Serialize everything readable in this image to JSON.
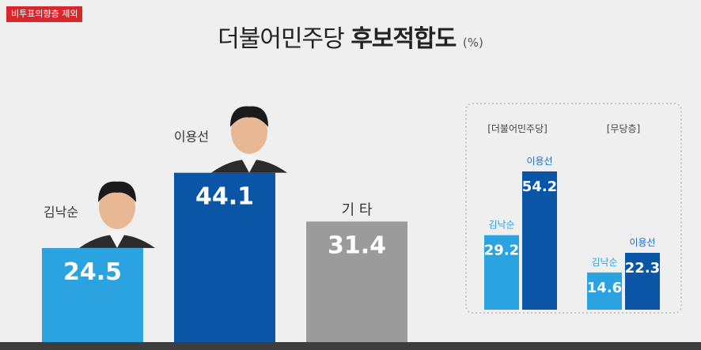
{
  "badge": "비투표의향층 제외",
  "title": {
    "normal": "더불어민주당",
    "bold": "후보적합도",
    "unit": "(%)"
  },
  "colors": {
    "light_blue": "#2aa3e0",
    "dark_blue": "#0a55a5",
    "gray": "#9b9b9b",
    "blue_label": "#1e6ec6"
  },
  "chart_data": [
    {
      "type": "bar",
      "categories": [
        "김낙순",
        "이용선",
        "기 타"
      ],
      "values": [
        24.5,
        44.1,
        31.4
      ],
      "ylim": [
        0,
        50
      ]
    },
    {
      "type": "bar",
      "groups": [
        "[더불어민주당]",
        "[무당층]"
      ],
      "series": [
        {
          "name": "김낙순",
          "values": [
            29.2,
            14.6
          ]
        },
        {
          "name": "이용선",
          "values": [
            54.2,
            22.3
          ]
        }
      ],
      "ylim": [
        0,
        60
      ]
    }
  ]
}
